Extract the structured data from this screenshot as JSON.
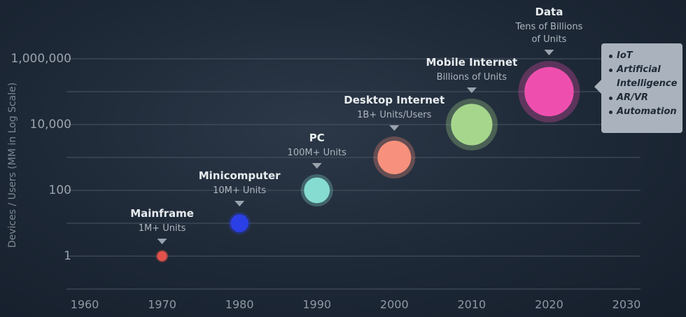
{
  "chart_data": {
    "type": "bubble",
    "y_label": "Devices / Users (MM in Log Scale)",
    "log_scale_y": true,
    "grid": true,
    "x": [
      1970,
      1980,
      1990,
      2000,
      2010,
      2020
    ],
    "values": [
      1,
      10,
      100,
      1000,
      10000,
      100000
    ],
    "names": [
      "Mainframe",
      "Minicomputer",
      "PC",
      "Desktop Internet",
      "Mobile Internet",
      "Data"
    ],
    "sublabels": [
      "1M+ Units",
      "10M+ Units",
      "100M+ Units",
      "1B+ Units/Users",
      "Billions of Units",
      "Tens of Billions of Units"
    ],
    "colors": [
      "#e0524a",
      "#2b3fe6",
      "#86dcd0",
      "#f7907c",
      "#a6d68c",
      "#ee4fae"
    ],
    "xlim": [
      1960,
      2030
    ],
    "xticks": [
      1960,
      1970,
      1980,
      1990,
      2000,
      2010,
      2020,
      2030
    ],
    "ylim": [
      0.1,
      10000000
    ],
    "yticks": [
      1,
      100,
      {
        "value": 10000,
        "label": "10,000"
      },
      {
        "value": 1000000,
        "label": "1,000,000"
      }
    ],
    "y_minor_ticks": [
      0.1,
      10,
      1000,
      100000
    ],
    "callout": [
      "IoT",
      "Artificial Intelligence",
      "AR/VR",
      "Automation"
    ]
  }
}
